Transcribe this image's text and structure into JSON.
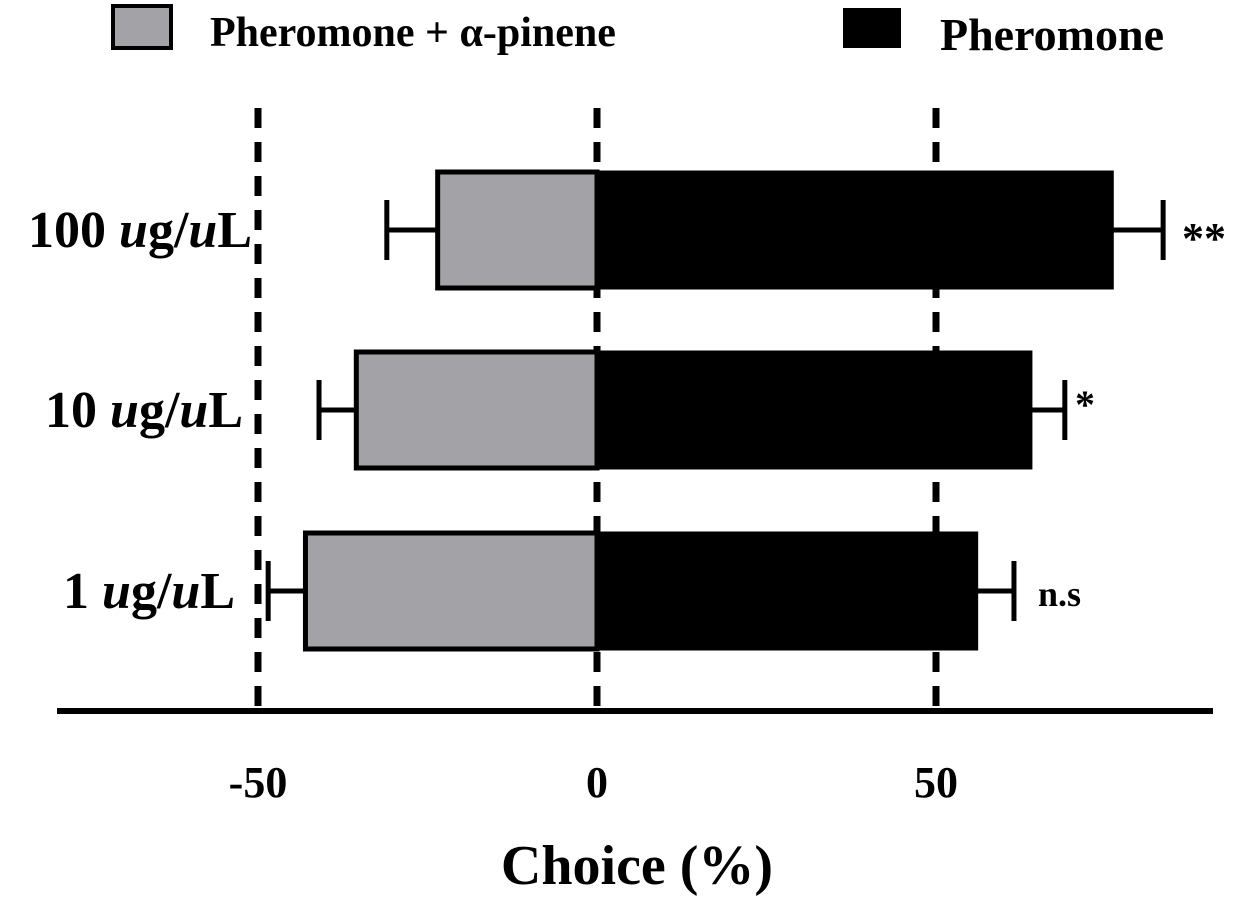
{
  "chart_data": {
    "type": "bar",
    "orientation": "horizontal",
    "stacked": "diverging",
    "xlabel": "Choice (%)",
    "ylabel": "",
    "xlim": [
      -80,
      90
    ],
    "xticks": [
      -50,
      0,
      50
    ],
    "xtick_labels": [
      "-50",
      "0",
      "50"
    ],
    "reference_lines": [
      -50,
      0,
      50
    ],
    "legend_position": "top",
    "categories": [
      {
        "number": "100 ",
        "unit_a": "u",
        "unit_mid": "g/",
        "unit_b": "u",
        "unit_end": "L"
      },
      {
        "number": "10 ",
        "unit_a": "u",
        "unit_mid": "g/",
        "unit_b": "u",
        "unit_end": "L"
      },
      {
        "number": "1 ",
        "unit_a": "u",
        "unit_mid": "g/",
        "unit_b": "u",
        "unit_end": "L"
      }
    ],
    "series": [
      {
        "name": "Pheromone + α-pinene",
        "color": "#a3a2a7",
        "values": [
          -23.5,
          -35.5,
          -43
        ],
        "errors": [
          7.5,
          5.5,
          5.5
        ]
      },
      {
        "name": "Pheromone",
        "color": "#000000",
        "values": [
          76,
          64,
          56
        ],
        "errors": [
          7.5,
          5,
          5.5
        ]
      }
    ],
    "annotations": [
      "**",
      "*",
      "n.s"
    ]
  }
}
